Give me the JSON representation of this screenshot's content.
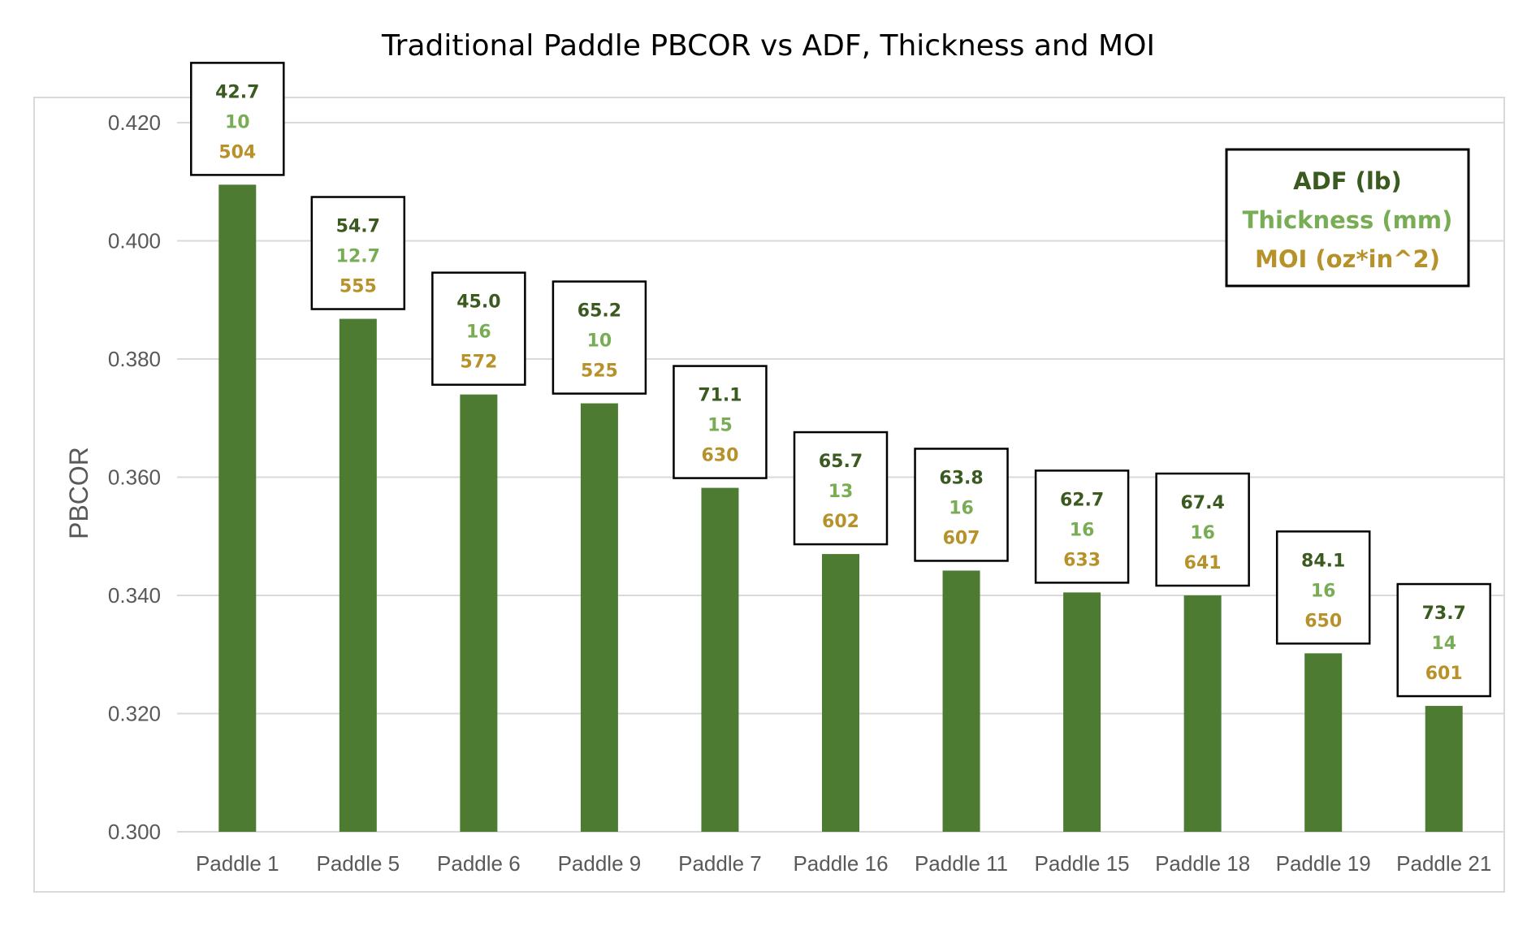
{
  "chart_data": {
    "type": "bar",
    "title": "Traditional Paddle PBCOR vs ADF, Thickness and MOI",
    "xlabel": "",
    "ylabel": "PBCOR",
    "ylim": [
      0.3,
      0.42
    ],
    "yticks": [
      "0.300",
      "0.320",
      "0.340",
      "0.360",
      "0.380",
      "0.400",
      "0.420"
    ],
    "grid": true,
    "legend_position": "top-right",
    "categories": [
      "Paddle 1",
      "Paddle 5",
      "Paddle 6",
      "Paddle 9",
      "Paddle 7",
      "Paddle 16",
      "Paddle 11",
      "Paddle 15",
      "Paddle 18",
      "Paddle 19",
      "Paddle 21"
    ],
    "values": [
      0.4095,
      0.3868,
      0.374,
      0.3725,
      0.3582,
      0.347,
      0.3442,
      0.3405,
      0.34,
      0.3302,
      0.3213
    ],
    "annotations": [
      {
        "adf": "42.7",
        "thickness": "10",
        "moi": "504"
      },
      {
        "adf": "54.7",
        "thickness": "12.7",
        "moi": "555"
      },
      {
        "adf": "45.0",
        "thickness": "16",
        "moi": "572"
      },
      {
        "adf": "65.2",
        "thickness": "10",
        "moi": "525"
      },
      {
        "adf": "71.1",
        "thickness": "15",
        "moi": "630"
      },
      {
        "adf": "65.7",
        "thickness": "13",
        "moi": "602"
      },
      {
        "adf": "63.8",
        "thickness": "16",
        "moi": "607"
      },
      {
        "adf": "62.7",
        "thickness": "16",
        "moi": "633"
      },
      {
        "adf": "67.4",
        "thickness": "16",
        "moi": "641"
      },
      {
        "adf": "84.1",
        "thickness": "16",
        "moi": "650"
      },
      {
        "adf": "73.7",
        "thickness": "14",
        "moi": "601"
      }
    ],
    "legend": [
      "ADF (lb)",
      "Thickness (mm)",
      "MOI (oz*in^2)"
    ]
  },
  "colors": {
    "bar": "#4e7b32",
    "adf": "#3a5a1f",
    "thickness": "#79ad55",
    "moi": "#b7912a",
    "grid": "#d9d9d9",
    "axis_text": "#595959"
  }
}
